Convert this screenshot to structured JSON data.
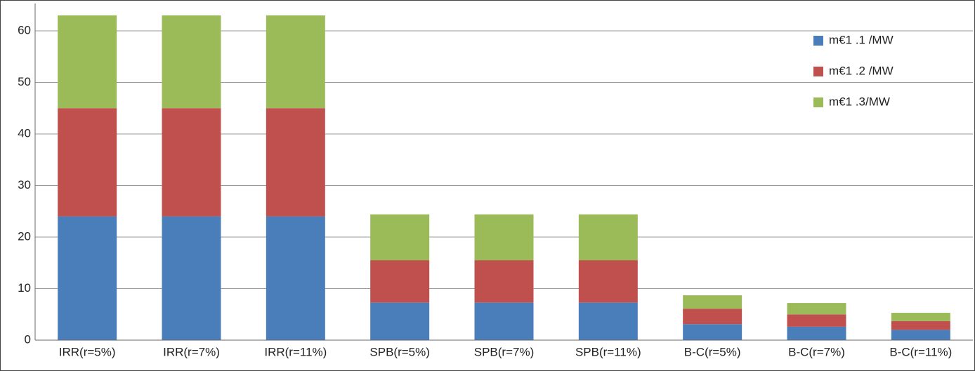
{
  "chart_data": {
    "type": "stacked_bar",
    "categories": [
      "IRR(r=5%)",
      "IRR(r=7%)",
      "IRR(r=11%)",
      "SPB(r=5%)",
      "SPB(r=7%)",
      "SPB(r=11%)",
      "B-C(r=5%)",
      "B-C(r=7%)",
      "B-C(r=11%)"
    ],
    "series": [
      {
        "name": "m€1 .1 /MW",
        "color": "#4a7ebb",
        "values": [
          24,
          24,
          24,
          7.3,
          7.3,
          7.3,
          3.1,
          2.6,
          2.0
        ]
      },
      {
        "name": "m€1 .2 /MW",
        "color": "#c0504d",
        "values": [
          21,
          21,
          21,
          8.2,
          8.2,
          8.2,
          3.0,
          2.4,
          1.7
        ]
      },
      {
        "name": "m€1 .3/MW",
        "color": "#9bbb59",
        "values": [
          18,
          18,
          18,
          8.9,
          8.9,
          8.9,
          2.6,
          2.2,
          1.6
        ]
      }
    ],
    "ylim": [
      0,
      65.3
    ],
    "yticks": [
      0,
      10,
      20,
      30,
      40,
      50,
      60
    ],
    "grid": true,
    "legend": "upper right"
  }
}
